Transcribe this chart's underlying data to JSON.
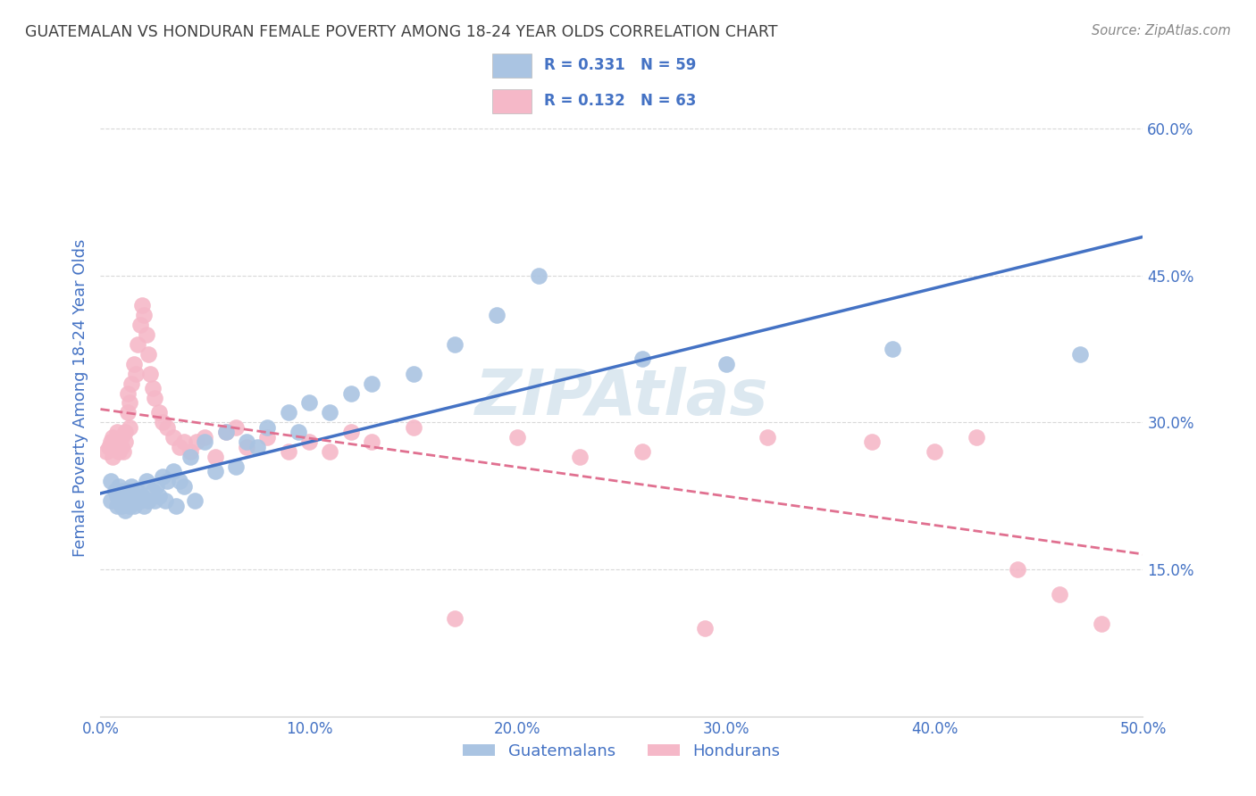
{
  "title": "GUATEMALAN VS HONDURAN FEMALE POVERTY AMONG 18-24 YEAR OLDS CORRELATION CHART",
  "source": "Source: ZipAtlas.com",
  "ylabel": "Female Poverty Among 18-24 Year Olds",
  "xlim": [
    0.0,
    0.5
  ],
  "ylim": [
    0.0,
    0.65
  ],
  "xticks": [
    0.0,
    0.1,
    0.2,
    0.3,
    0.4,
    0.5
  ],
  "xticklabels": [
    "0.0%",
    "10.0%",
    "20.0%",
    "30.0%",
    "40.0%",
    "50.0%"
  ],
  "yticks": [
    0.15,
    0.3,
    0.45,
    0.6
  ],
  "yticklabels": [
    "15.0%",
    "30.0%",
    "45.0%",
    "60.0%"
  ],
  "legend_text1": "R = 0.331   N = 59",
  "legend_text2": "R = 0.132   N = 63",
  "guatemalan_color": "#aac4e2",
  "honduran_color": "#f5b8c8",
  "trendline_blue": "#4472c4",
  "trendline_pink": "#e07090",
  "watermark": "ZIPAtlas",
  "background_color": "#ffffff",
  "grid_color": "#d0d0d0",
  "title_color": "#404040",
  "axis_label_color": "#4472c4",
  "guatemalans_x": [
    0.005,
    0.005,
    0.007,
    0.008,
    0.008,
    0.009,
    0.01,
    0.01,
    0.01,
    0.011,
    0.012,
    0.013,
    0.013,
    0.014,
    0.015,
    0.015,
    0.016,
    0.016,
    0.017,
    0.018,
    0.019,
    0.02,
    0.021,
    0.022,
    0.023,
    0.025,
    0.026,
    0.027,
    0.028,
    0.03,
    0.031,
    0.032,
    0.035,
    0.036,
    0.038,
    0.04,
    0.043,
    0.045,
    0.05,
    0.055,
    0.06,
    0.065,
    0.07,
    0.075,
    0.08,
    0.09,
    0.095,
    0.1,
    0.11,
    0.12,
    0.13,
    0.15,
    0.17,
    0.19,
    0.21,
    0.26,
    0.3,
    0.38,
    0.47
  ],
  "guatemalans_y": [
    0.22,
    0.24,
    0.23,
    0.215,
    0.225,
    0.235,
    0.22,
    0.23,
    0.215,
    0.225,
    0.21,
    0.22,
    0.23,
    0.215,
    0.225,
    0.235,
    0.22,
    0.215,
    0.225,
    0.23,
    0.22,
    0.225,
    0.215,
    0.24,
    0.22,
    0.23,
    0.22,
    0.235,
    0.225,
    0.245,
    0.22,
    0.24,
    0.25,
    0.215,
    0.24,
    0.235,
    0.265,
    0.22,
    0.28,
    0.25,
    0.29,
    0.255,
    0.28,
    0.275,
    0.295,
    0.31,
    0.29,
    0.32,
    0.31,
    0.33,
    0.34,
    0.35,
    0.38,
    0.41,
    0.45,
    0.365,
    0.36,
    0.375,
    0.37
  ],
  "hondurans_x": [
    0.003,
    0.004,
    0.005,
    0.006,
    0.006,
    0.007,
    0.008,
    0.008,
    0.009,
    0.009,
    0.01,
    0.01,
    0.011,
    0.012,
    0.012,
    0.013,
    0.013,
    0.014,
    0.014,
    0.015,
    0.016,
    0.017,
    0.018,
    0.019,
    0.02,
    0.021,
    0.022,
    0.023,
    0.024,
    0.025,
    0.026,
    0.028,
    0.03,
    0.032,
    0.035,
    0.038,
    0.04,
    0.043,
    0.046,
    0.05,
    0.055,
    0.06,
    0.065,
    0.07,
    0.08,
    0.09,
    0.1,
    0.11,
    0.12,
    0.13,
    0.15,
    0.17,
    0.2,
    0.23,
    0.26,
    0.29,
    0.32,
    0.37,
    0.4,
    0.42,
    0.44,
    0.46,
    0.48
  ],
  "hondurans_y": [
    0.27,
    0.275,
    0.28,
    0.265,
    0.285,
    0.275,
    0.28,
    0.29,
    0.27,
    0.28,
    0.275,
    0.285,
    0.27,
    0.29,
    0.28,
    0.33,
    0.31,
    0.295,
    0.32,
    0.34,
    0.36,
    0.35,
    0.38,
    0.4,
    0.42,
    0.41,
    0.39,
    0.37,
    0.35,
    0.335,
    0.325,
    0.31,
    0.3,
    0.295,
    0.285,
    0.275,
    0.28,
    0.27,
    0.28,
    0.285,
    0.265,
    0.29,
    0.295,
    0.275,
    0.285,
    0.27,
    0.28,
    0.27,
    0.29,
    0.28,
    0.295,
    0.1,
    0.285,
    0.265,
    0.27,
    0.09,
    0.285,
    0.28,
    0.27,
    0.285,
    0.15,
    0.125,
    0.095
  ]
}
